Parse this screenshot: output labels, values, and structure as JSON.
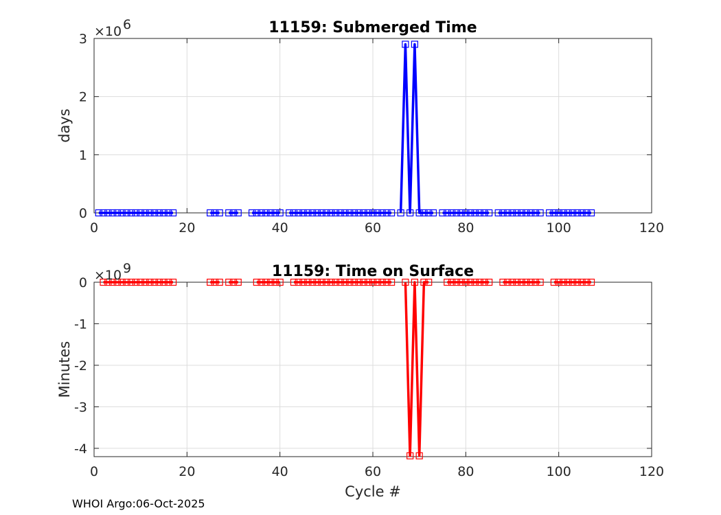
{
  "footer": "WHOI Argo:06-Oct-2025",
  "chart_data": [
    {
      "type": "line",
      "title": "11159: Submerged Time",
      "xlabel": "",
      "ylabel": "days",
      "xlim": [
        0,
        120
      ],
      "ylim": [
        0,
        3
      ],
      "y_exponent_base": "×10",
      "y_exponent_power": "6",
      "xticks": [
        "0",
        "20",
        "40",
        "60",
        "80",
        "100",
        "120"
      ],
      "yticks": [
        "0",
        "1",
        "2",
        "3"
      ],
      "grid": true,
      "color": "#0000ff",
      "marker": "square",
      "series": [
        {
          "x": [
            1,
            2,
            3,
            4,
            5,
            6,
            7,
            8,
            9,
            10,
            11,
            12,
            13,
            14,
            15,
            16,
            17,
            25,
            26,
            27,
            29,
            30,
            31,
            34,
            35,
            36,
            37,
            38,
            39,
            40,
            42,
            43,
            44,
            45,
            46,
            47,
            48,
            49,
            50,
            51,
            52,
            53,
            54,
            55,
            56,
            57,
            58,
            59,
            60,
            61,
            62,
            63,
            64,
            66,
            67,
            68,
            69,
            70,
            71,
            72,
            73,
            75,
            76,
            77,
            78,
            79,
            80,
            81,
            82,
            83,
            84,
            85,
            87,
            88,
            89,
            90,
            91,
            92,
            93,
            94,
            95,
            96,
            98,
            99,
            100,
            101,
            102,
            103,
            104,
            105,
            106,
            107
          ],
          "y": [
            0,
            0,
            0,
            0,
            0,
            0,
            0,
            0,
            0,
            0,
            0,
            0,
            0,
            0,
            0,
            0,
            0,
            0,
            0,
            0,
            0,
            0,
            0,
            0,
            0,
            0,
            0,
            0,
            0,
            0,
            0,
            0,
            0,
            0,
            0,
            0,
            0,
            0,
            0,
            0,
            0,
            0,
            0,
            0,
            0,
            0,
            0,
            0,
            0,
            0,
            0,
            0,
            0,
            0,
            2.9,
            0,
            2.9,
            0,
            0,
            0,
            0,
            0,
            0,
            0,
            0,
            0,
            0,
            0,
            0,
            0,
            0,
            0,
            0,
            0,
            0,
            0,
            0,
            0,
            0,
            0,
            0,
            0,
            0,
            0,
            0,
            0,
            0,
            0,
            0,
            0,
            0,
            0
          ]
        }
      ]
    },
    {
      "type": "line",
      "title": "11159: Time on Surface",
      "xlabel": "Cycle #",
      "ylabel": "Minutes",
      "xlim": [
        0,
        120
      ],
      "ylim": [
        -4.2,
        0
      ],
      "y_exponent_base": "×10",
      "y_exponent_power": "9",
      "xticks": [
        "0",
        "20",
        "40",
        "60",
        "80",
        "100",
        "120"
      ],
      "yticks": [
        "0",
        "-1",
        "-2",
        "-3",
        "-4"
      ],
      "grid": true,
      "color": "#ff0000",
      "marker": "square",
      "series": [
        {
          "x": [
            2,
            3,
            4,
            5,
            6,
            7,
            8,
            9,
            10,
            11,
            12,
            13,
            14,
            15,
            16,
            17,
            25,
            26,
            27,
            29,
            30,
            31,
            35,
            36,
            37,
            38,
            39,
            40,
            43,
            44,
            45,
            46,
            47,
            48,
            49,
            50,
            51,
            52,
            53,
            54,
            55,
            56,
            57,
            58,
            59,
            60,
            61,
            62,
            63,
            64,
            67,
            68,
            69,
            70,
            71,
            72,
            76,
            77,
            78,
            79,
            80,
            81,
            82,
            83,
            84,
            85,
            88,
            89,
            90,
            91,
            92,
            93,
            94,
            95,
            96,
            99,
            100,
            101,
            102,
            103,
            104,
            105,
            106,
            107
          ],
          "y": [
            0,
            0,
            0,
            0,
            0,
            0,
            0,
            0,
            0,
            0,
            0,
            0,
            0,
            0,
            0,
            0,
            0,
            0,
            0,
            0,
            0,
            0,
            0,
            0,
            0,
            0,
            0,
            0,
            0,
            0,
            0,
            0,
            0,
            0,
            0,
            0,
            0,
            0,
            0,
            0,
            0,
            0,
            0,
            0,
            0,
            0,
            0,
            0,
            0,
            0,
            0,
            -4.18,
            0,
            -4.18,
            0,
            0,
            0,
            0,
            0,
            0,
            0,
            0,
            0,
            0,
            0,
            0,
            0,
            0,
            0,
            0,
            0,
            0,
            0,
            0,
            0,
            0,
            0,
            0,
            0,
            0,
            0,
            0,
            0,
            0
          ]
        }
      ]
    }
  ]
}
